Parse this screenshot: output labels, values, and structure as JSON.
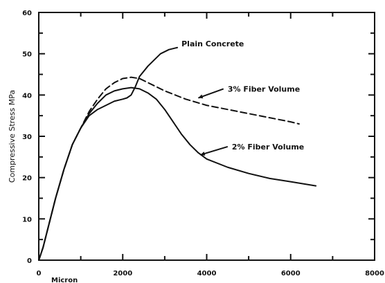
{
  "chart_data": {
    "type": "line",
    "title": "",
    "xlabel": "Micron",
    "ylabel": "Compressive Stress MPa",
    "xlim": [
      0,
      8000
    ],
    "ylim": [
      0,
      60
    ],
    "xticks": [
      0,
      2000,
      4000,
      6000,
      8000
    ],
    "yticks": [
      0,
      10,
      20,
      30,
      40,
      50,
      60
    ],
    "xtick_labels": [
      "0",
      "2000",
      "4000",
      "6000",
      "8000"
    ],
    "ytick_labels": [
      "0",
      "10",
      "20",
      "30",
      "40",
      "50",
      "60"
    ],
    "grid": false,
    "legend": "none",
    "series": [
      {
        "name": "Plain Concrete",
        "style": "solid",
        "color": "#111111",
        "x": [
          0,
          100,
          200,
          400,
          600,
          800,
          1000,
          1200,
          1400,
          1600,
          1800,
          2000,
          2100,
          2200,
          2300,
          2400,
          2600,
          2900,
          3100,
          3300
        ],
        "y": [
          0,
          3,
          7,
          15,
          22,
          28,
          32,
          35,
          36.5,
          37.5,
          38.5,
          39,
          39.3,
          40,
          42,
          44.5,
          47,
          50,
          51,
          51.5
        ]
      },
      {
        "name": "3% Fiber Volume",
        "style": "dashed",
        "color": "#111111",
        "x": [
          0,
          100,
          200,
          400,
          600,
          800,
          1000,
          1200,
          1400,
          1600,
          1800,
          2000,
          2200,
          2400,
          2600,
          3000,
          3500,
          4000,
          4500,
          5000,
          5500,
          6000,
          6200
        ],
        "y": [
          0,
          3,
          7,
          15,
          22,
          28,
          32,
          36,
          39,
          41.5,
          43,
          44,
          44.3,
          44,
          43,
          41,
          39,
          37.5,
          36.5,
          35.5,
          34.5,
          33.5,
          33
        ]
      },
      {
        "name": "2% Fiber Volume",
        "style": "solid",
        "color": "#111111",
        "x": [
          0,
          100,
          200,
          400,
          600,
          800,
          1000,
          1200,
          1400,
          1600,
          1800,
          2000,
          2200,
          2400,
          2600,
          2800,
          3000,
          3200,
          3400,
          3600,
          3800,
          4000,
          4500,
          5000,
          5500,
          6000,
          6600
        ],
        "y": [
          0,
          3,
          7,
          15,
          22,
          28,
          32,
          35.5,
          38,
          40,
          41,
          41.5,
          41.8,
          41.5,
          40.5,
          39,
          36.5,
          33.5,
          30.5,
          28,
          26,
          24.5,
          22.5,
          21,
          19.8,
          19,
          18
        ]
      }
    ],
    "annotations": [
      {
        "text": "Plain Concrete",
        "x": 3400,
        "y": 52.5
      },
      {
        "text": "3% Fiber Volume",
        "x": 4500,
        "y": 41.5
      },
      {
        "text": "2% Fiber Volume",
        "x": 4600,
        "y": 27.5
      }
    ]
  }
}
